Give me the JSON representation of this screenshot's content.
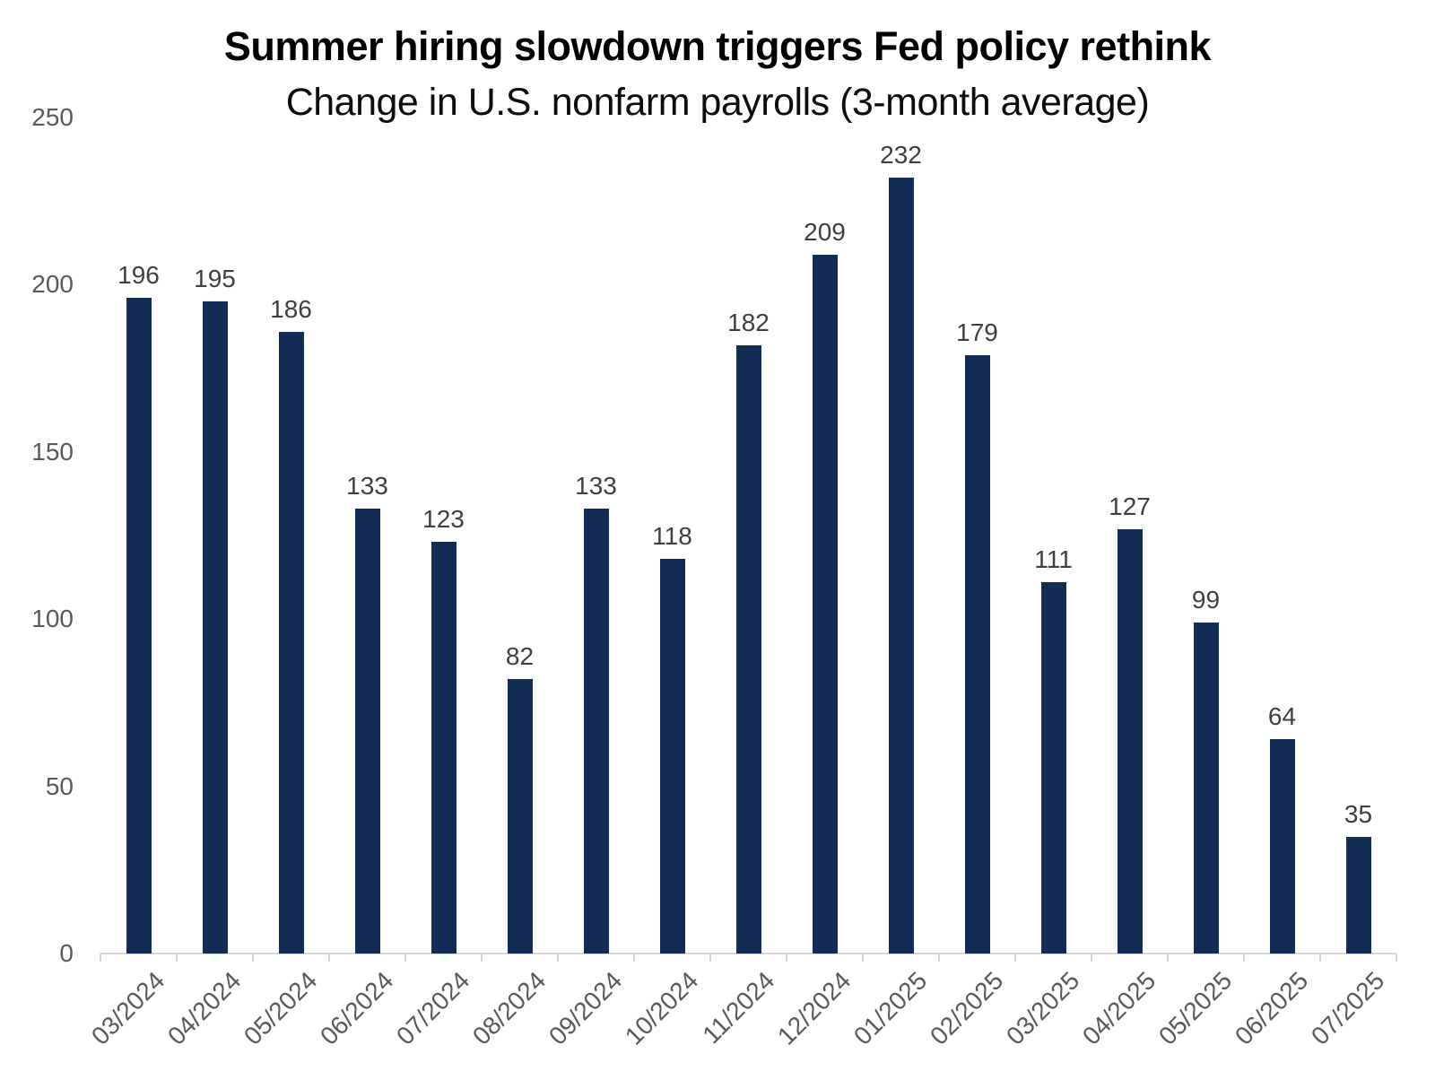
{
  "chart_data": {
    "type": "bar",
    "title": "Summer hiring slowdown triggers Fed policy rethink",
    "subtitle": "Change in U.S. nonfarm payrolls (3-month average)",
    "categories": [
      "03/2024",
      "04/2024",
      "05/2024",
      "06/2024",
      "07/2024",
      "08/2024",
      "09/2024",
      "10/2024",
      "11/2024",
      "12/2024",
      "01/2025",
      "02/2025",
      "03/2025",
      "04/2025",
      "05/2025",
      "06/2025",
      "07/2025"
    ],
    "values": [
      196,
      195,
      186,
      133,
      123,
      82,
      133,
      118,
      182,
      209,
      232,
      179,
      111,
      127,
      99,
      64,
      35
    ],
    "xlabel": "",
    "ylabel": "",
    "ylim": [
      0,
      250
    ],
    "y_ticks": [
      0,
      50,
      100,
      150,
      200,
      250
    ],
    "grid": false,
    "legend": "none",
    "bar_color": "#132C55",
    "axis_color": "#D6D6D6",
    "axis_tick_label_color": "#595959",
    "value_label_color": "#3F3F3F",
    "title_color": "#000000",
    "background_color": "#FFFFFF"
  }
}
